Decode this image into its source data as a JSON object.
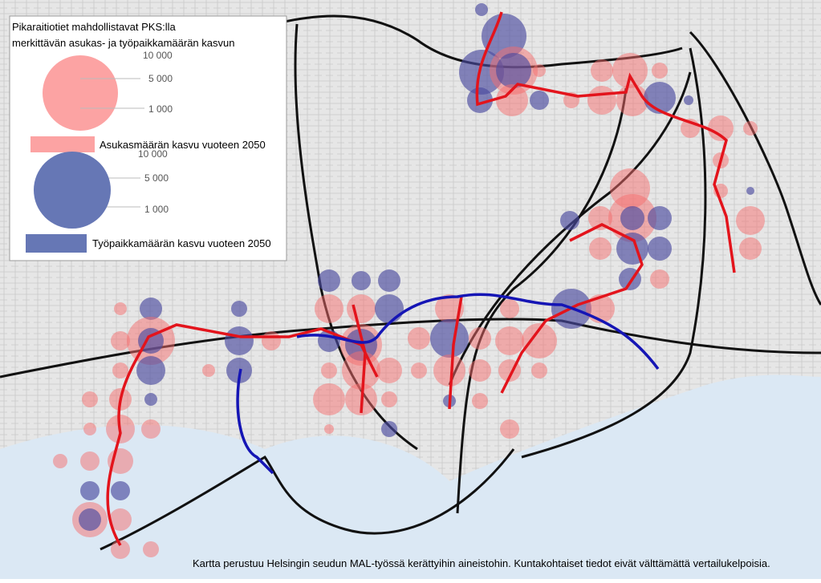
{
  "legend": {
    "title": [
      "Pikaraitiotiet mahdollistavat PKS:lla",
      "merkittävän asukas- ja työpaikkamäärän kasvun"
    ],
    "population": {
      "scale": [
        "10 000",
        "5 000",
        "1 000"
      ],
      "label": "Asukasmäärän kasvu vuoteen 2050"
    },
    "jobs": {
      "scale": [
        "10 000",
        "5 000",
        "1 000"
      ],
      "label": "Työpaikkamäärän kasvu vuoteen 2050"
    }
  },
  "footer": "Kartta perustuu Helsingin seudun MAL-työssä kerättyihin aineistohin. Kuntakohtaiset tiedot eivät välttämättä vertailukelpoisia."
}
